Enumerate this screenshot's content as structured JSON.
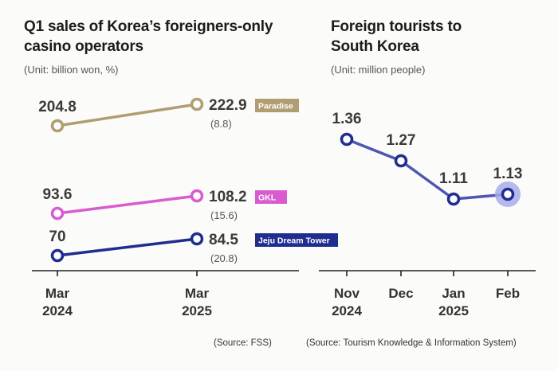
{
  "left": {
    "title": "Q1 sales of Korea’s foreigners-only\ncasino operators",
    "unit": "(Unit: billion won, %)",
    "source": "(Source: FSS)"
  },
  "right": {
    "title": "Foreign tourists to\nSouth Korea",
    "unit": "(Unit: million people)",
    "source": "(Source: Tourism Knowledge & Information System)"
  },
  "chart_data": [
    {
      "type": "line",
      "title": "Q1 sales of Korea’s foreigners-only casino operators",
      "unit": "(Unit: billion won, %)",
      "x": [
        "Mar 2024",
        "Mar 2025"
      ],
      "series": [
        {
          "name": "Paradise",
          "values": [
            204.8,
            222.9
          ],
          "change": "(8.8)",
          "color": "#b09d72"
        },
        {
          "name": "GKL",
          "values": [
            93.6,
            108.2
          ],
          "change": "(15.6)",
          "color": "#d95bcf"
        },
        {
          "name": "Jeju Dream Tower",
          "values": [
            70,
            84.5
          ],
          "change": "(20.8)",
          "color": "#1f2d8f"
        }
      ],
      "xticks": [
        {
          "top": "Mar",
          "bottom": "2024"
        },
        {
          "top": "Mar",
          "bottom": "2025"
        }
      ]
    },
    {
      "type": "line",
      "title": "Foreign tourists to South Korea",
      "unit": "(Unit: million people)",
      "x": [
        "Nov 2024",
        "Dec",
        "Jan 2025",
        "Feb"
      ],
      "series": [
        {
          "values": [
            1.36,
            1.27,
            1.11,
            1.13
          ],
          "color": "#4f55b0",
          "highlight_last": true
        }
      ],
      "labels": [
        "1.36",
        "1.27",
        "1.11",
        "1.13"
      ],
      "xticks": [
        {
          "top": "Nov",
          "bottom": "2024"
        },
        {
          "top": "Dec",
          "bottom": ""
        },
        {
          "top": "Jan",
          "bottom": "2025"
        },
        {
          "top": "Feb",
          "bottom": ""
        }
      ]
    }
  ]
}
